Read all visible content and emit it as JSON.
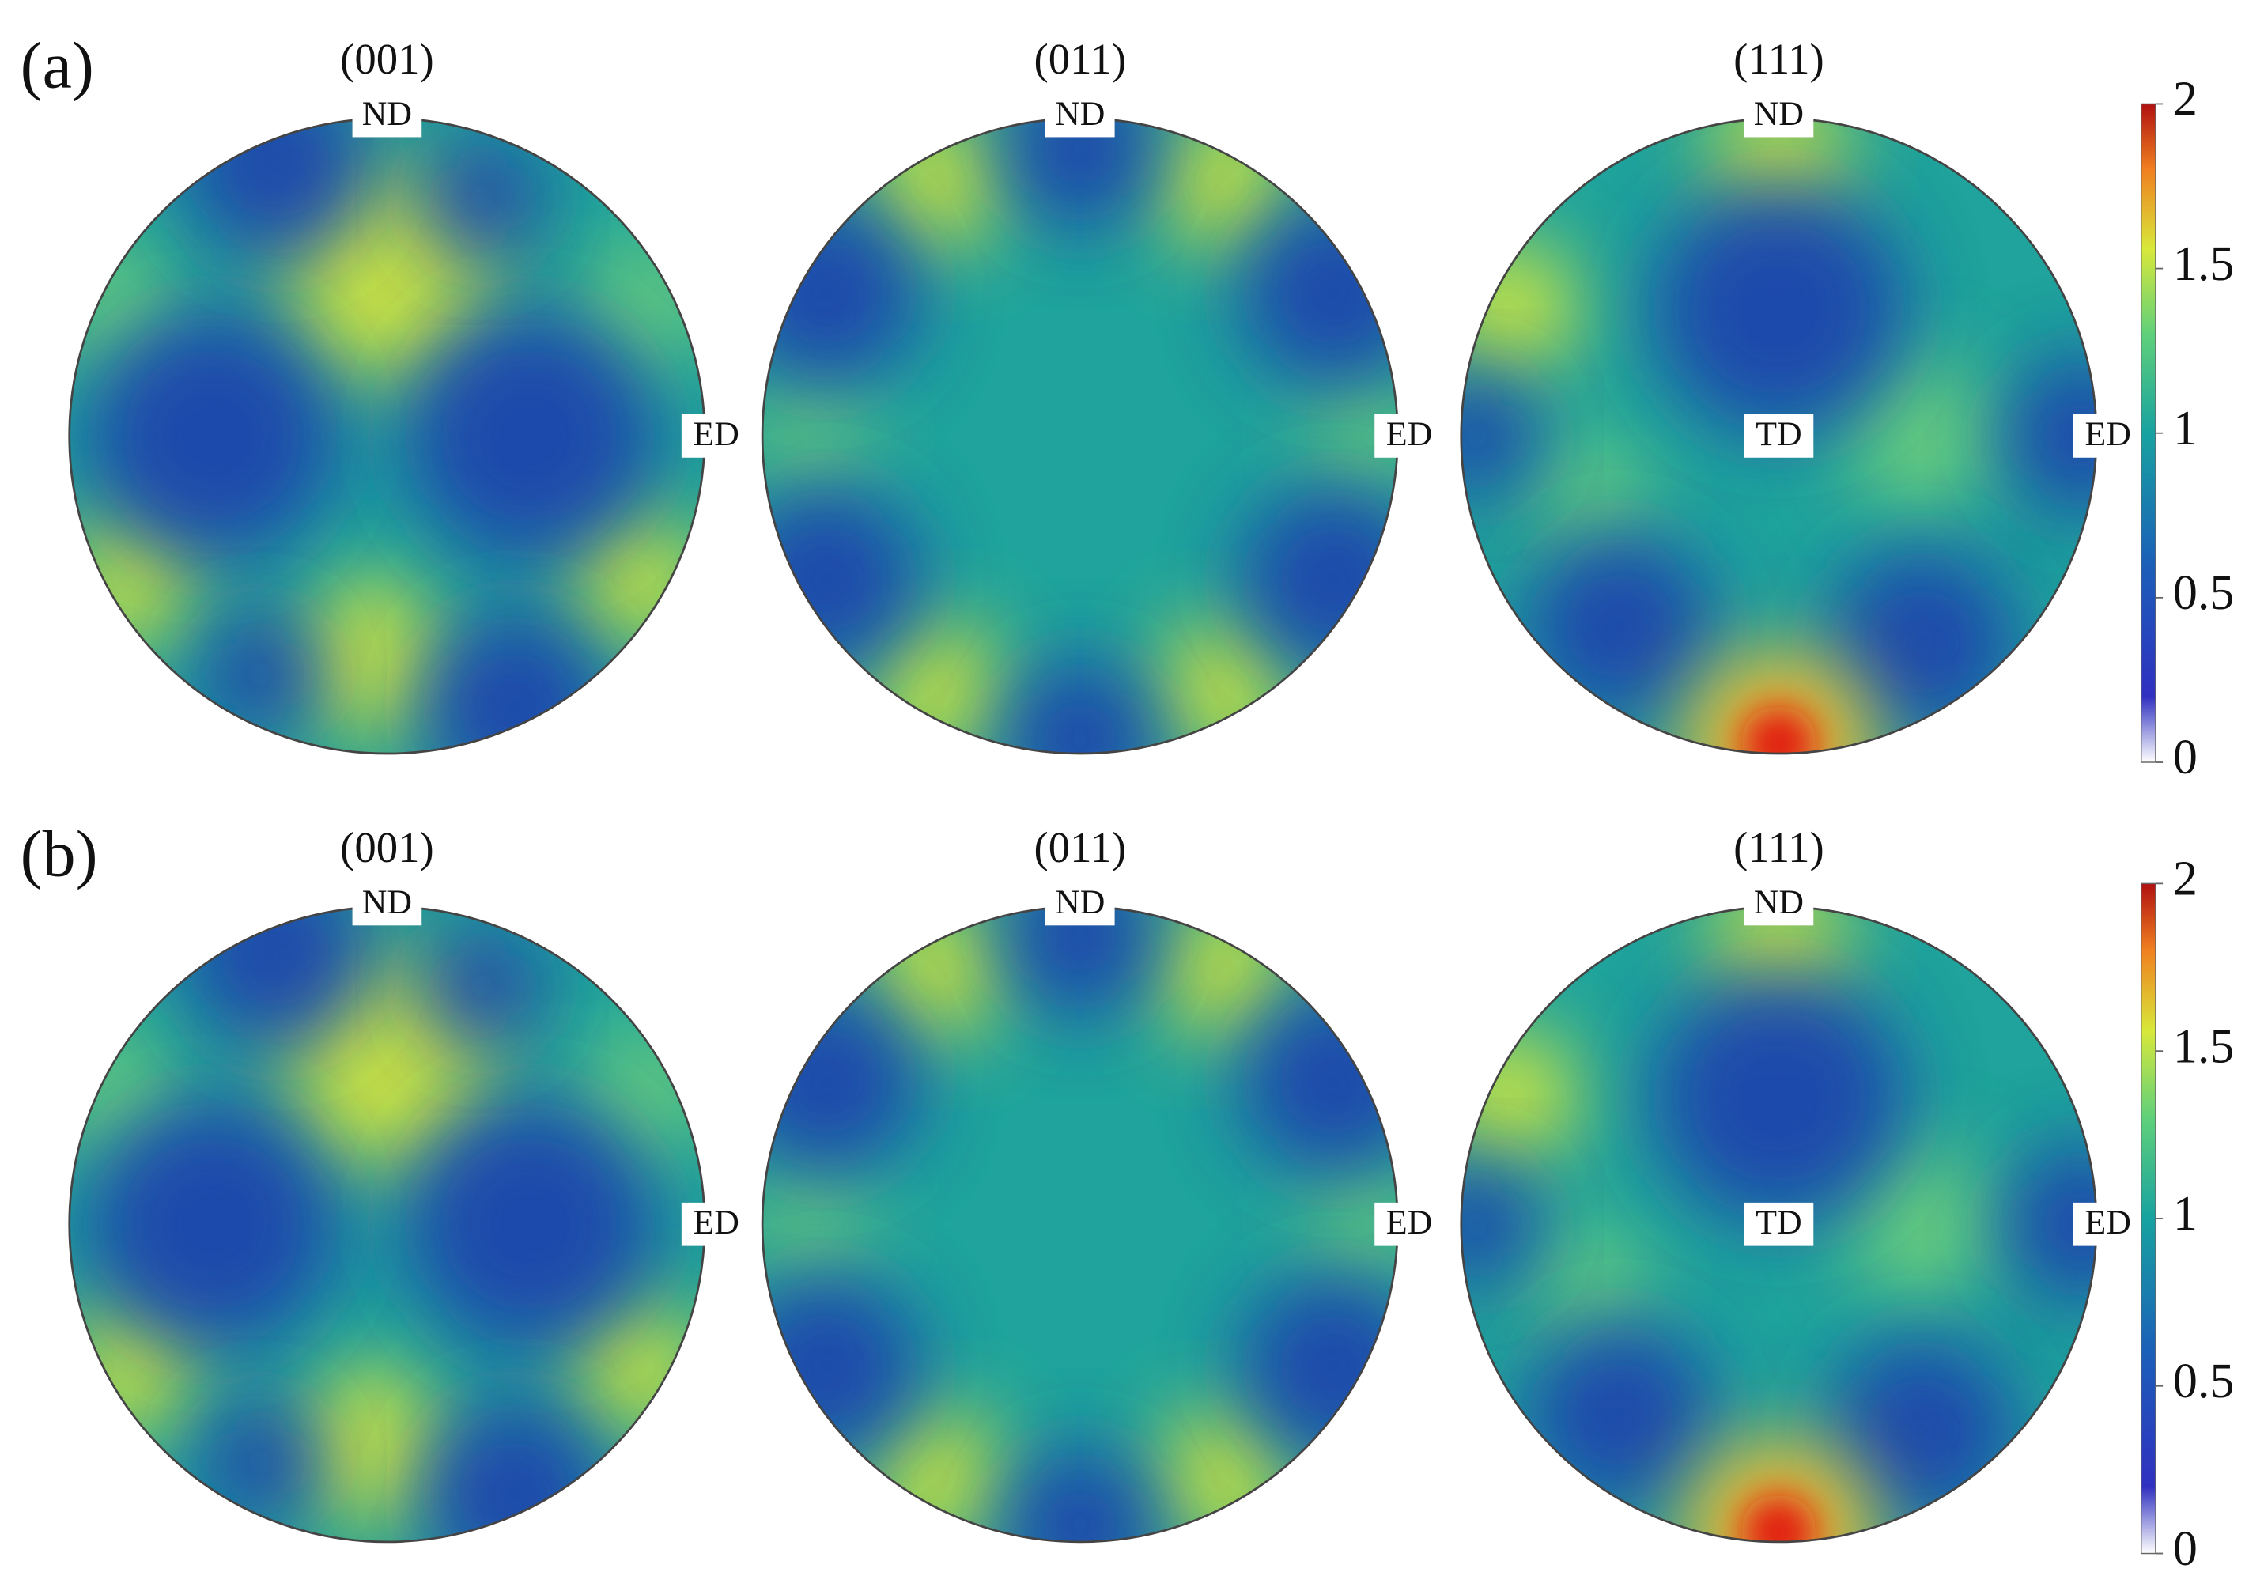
{
  "panels": [
    {
      "label": "(a)",
      "pole_figures": [
        {
          "title": "(001)",
          "labels": [
            "ND",
            "ED"
          ]
        },
        {
          "title": "(011)",
          "labels": [
            "ND",
            "ED"
          ]
        },
        {
          "title": "(111)",
          "labels": [
            "ND",
            "TD",
            "ED"
          ]
        }
      ],
      "colorbar": {
        "range": [
          0,
          2
        ],
        "ticks": [
          0,
          0.5,
          1,
          1.5,
          2
        ]
      }
    },
    {
      "label": "(b)",
      "pole_figures": [
        {
          "title": "(001)",
          "labels": [
            "ND",
            "ED"
          ]
        },
        {
          "title": "(011)",
          "labels": [
            "ND",
            "ED"
          ]
        },
        {
          "title": "(111)",
          "labels": [
            "ND",
            "TD",
            "ED"
          ]
        }
      ],
      "colorbar": {
        "range": [
          0,
          2
        ],
        "ticks": [
          0,
          0.5,
          1,
          1.5,
          2
        ]
      }
    }
  ]
}
